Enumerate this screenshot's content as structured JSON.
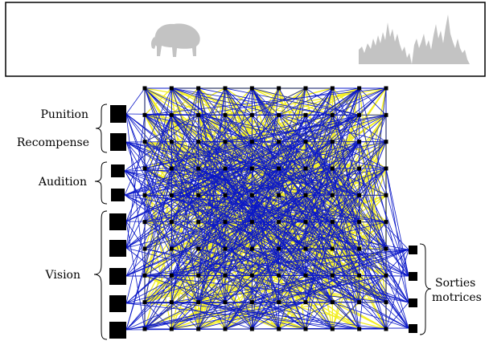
{
  "labels": {
    "punition": "Punition",
    "recompense": "Recompense",
    "audition": "Audition",
    "vision": "Vision",
    "sorties_line1": "Sorties",
    "sorties_line2": "motrices"
  },
  "icons": {
    "banner_left": "bison-silhouette-icon",
    "banner_right": "sound-waveform-icon"
  },
  "network": {
    "rows": 10,
    "cols": 10,
    "input_groups": [
      "Punition",
      "Recompense",
      "Audition",
      "Vision"
    ],
    "input_counts": [
      1,
      1,
      2,
      5
    ],
    "output_count": 4
  },
  "colors": {
    "connection_primary": "#0b18c8",
    "connection_secondary": "#f2ee22",
    "neuron": "#000000",
    "banner_icon": "#c3c3c3",
    "banner_border": "#000000"
  }
}
